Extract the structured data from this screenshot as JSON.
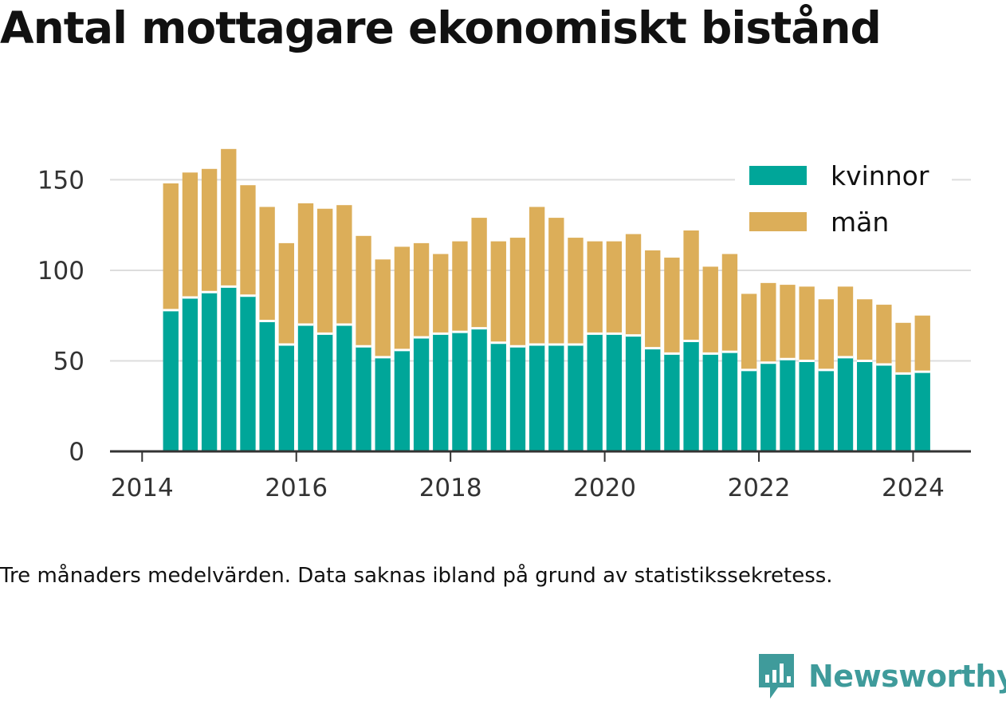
{
  "title": "Antal mottagare ekonomiskt bistånd",
  "caption": "Tre månaders medelvärden. Data saknas ibland på grund av statistikssekretess.",
  "brand": {
    "name": "Newsworthy",
    "icon": "newsworthy-logo-icon"
  },
  "colors": {
    "kvinnor": "#00a699",
    "man": "#dcae59",
    "grid": "#dddddd",
    "axis": "#333333"
  },
  "chart_data": {
    "type": "bar",
    "stacked": true,
    "x_ticks": [
      "2014",
      "2016",
      "2018",
      "2020",
      "2022",
      "2024"
    ],
    "y_ticks": [
      "0",
      "50",
      "100",
      "150"
    ],
    "ylim": [
      0,
      170
    ],
    "xlim": [
      "2013-08-01",
      "2024-10-01"
    ],
    "legend_position": "top-right",
    "x": [
      "2014-05",
      "2014-08",
      "2014-11",
      "2015-02",
      "2015-05",
      "2015-08",
      "2015-11",
      "2016-02",
      "2016-05",
      "2016-08",
      "2016-11",
      "2017-02",
      "2017-05",
      "2017-08",
      "2017-11",
      "2018-02",
      "2018-05",
      "2018-08",
      "2018-11",
      "2019-02",
      "2019-05",
      "2019-08",
      "2019-11",
      "2020-02",
      "2020-05",
      "2020-08",
      "2020-11",
      "2021-02",
      "2021-05",
      "2021-08",
      "2021-11",
      "2022-02",
      "2022-05",
      "2022-08",
      "2022-11",
      "2023-02",
      "2023-05",
      "2023-08",
      "2023-11",
      "2024-02"
    ],
    "series": [
      {
        "name": "kvinnor",
        "values": [
          78,
          85,
          88,
          91,
          86,
          72,
          59,
          70,
          65,
          70,
          58,
          52,
          56,
          63,
          65,
          66,
          68,
          60,
          58,
          59,
          59,
          59,
          65,
          65,
          64,
          57,
          54,
          61,
          54,
          55,
          45,
          49,
          51,
          50,
          45,
          52,
          50,
          48,
          43,
          44
        ]
      },
      {
        "name": "män",
        "values": [
          70,
          69,
          68,
          76,
          61,
          63,
          56,
          67,
          69,
          66,
          61,
          54,
          57,
          52,
          44,
          50,
          61,
          56,
          60,
          76,
          70,
          59,
          51,
          51,
          56,
          54,
          53,
          61,
          48,
          54,
          42,
          44,
          41,
          41,
          39,
          39,
          34,
          33,
          28,
          31
        ]
      }
    ]
  }
}
